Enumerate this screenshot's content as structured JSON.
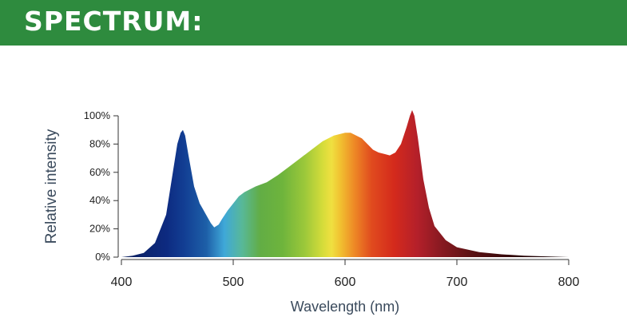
{
  "header": {
    "title": "SPECTRUM:",
    "bg_color": "#2e8b3e",
    "text_color": "#ffffff"
  },
  "chart_data": {
    "type": "area",
    "title": "",
    "xlabel": "Wavelength (nm)",
    "ylabel": "Relative intensity",
    "xlim": [
      400,
      800
    ],
    "ylim": [
      0,
      100
    ],
    "x_ticks": [
      400,
      500,
      600,
      700,
      800
    ],
    "y_ticks": [
      0,
      20,
      40,
      60,
      80,
      100
    ],
    "y_tick_labels": [
      "0%",
      "20%",
      "40%",
      "60%",
      "80%",
      "100%"
    ],
    "grid": false,
    "legend": "none",
    "fill": "wavelength-colored spectrum gradient",
    "series": [
      {
        "x": [
          400,
          410,
          420,
          430,
          440,
          445,
          450,
          453,
          455,
          457,
          460,
          465,
          470,
          475,
          480,
          483,
          487,
          490,
          495,
          500,
          505,
          510,
          520,
          530,
          540,
          550,
          560,
          570,
          580,
          590,
          600,
          605,
          610,
          615,
          620,
          625,
          630,
          635,
          640,
          645,
          650,
          655,
          658,
          660,
          662,
          665,
          670,
          675,
          680,
          690,
          700,
          720,
          740,
          760,
          780,
          800
        ],
        "y": [
          0,
          1,
          3,
          10,
          30,
          55,
          80,
          88,
          90,
          86,
          72,
          50,
          38,
          31,
          24,
          21,
          23,
          27,
          33,
          38,
          43,
          46,
          50,
          53,
          58,
          64,
          70,
          76,
          82,
          86,
          88,
          88,
          86,
          84,
          80,
          76,
          74,
          73,
          72,
          74,
          80,
          92,
          100,
          104,
          100,
          85,
          55,
          35,
          22,
          12,
          7,
          3.5,
          2,
          1,
          0.5,
          0
        ]
      }
    ]
  }
}
